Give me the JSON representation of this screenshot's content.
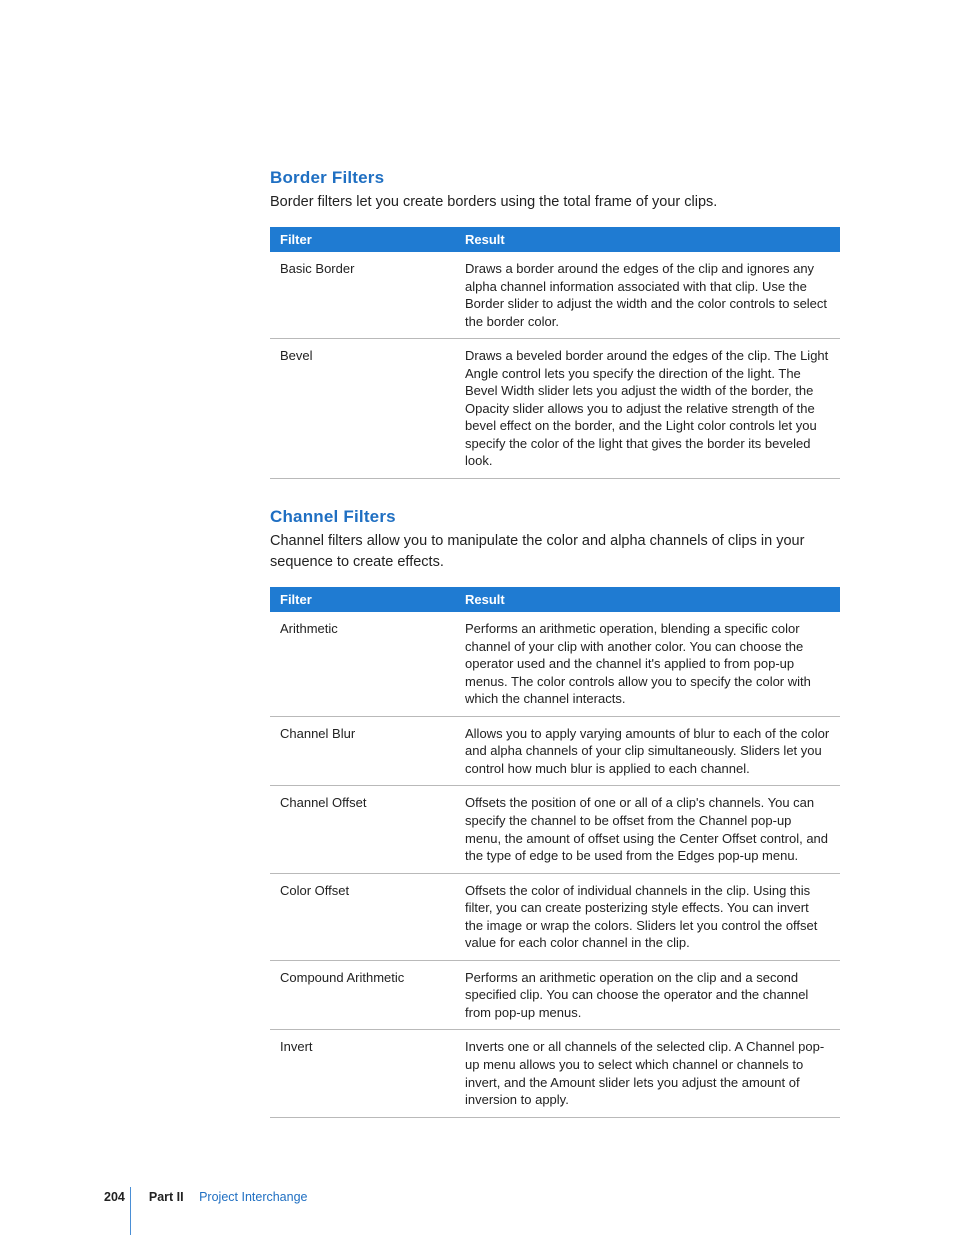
{
  "colors": {
    "heading": "#1f6fc2",
    "table_header_bg": "#1f7bd2",
    "table_header_text": "#ffffff",
    "row_border": "#b9b9b9",
    "body_text": "#222222",
    "footer_accent": "#1f6fc2",
    "vline": "#4a8fd6"
  },
  "sections": [
    {
      "heading": "Border Filters",
      "intro": "Border filters let you create borders using the total frame of your clips.",
      "columns": [
        "Filter",
        "Result"
      ],
      "rows": [
        {
          "filter": "Basic Border",
          "result": "Draws a border around the edges of the clip and ignores any alpha channel information associated with that clip. Use the Border slider to adjust the width and the color controls to select the border color."
        },
        {
          "filter": "Bevel",
          "result": "Draws a beveled border around the edges of the clip. The Light Angle control lets you specify the direction of the light. The Bevel Width slider lets you adjust the width of the border, the Opacity slider allows you to adjust the relative strength of the bevel effect on the border, and the Light color controls let you specify the color of the light that gives the border its beveled look."
        }
      ]
    },
    {
      "heading": "Channel Filters",
      "intro": "Channel filters allow you to manipulate the color and alpha channels of clips in your sequence to create effects.",
      "columns": [
        "Filter",
        "Result"
      ],
      "rows": [
        {
          "filter": "Arithmetic",
          "result": "Performs an arithmetic operation, blending a specific color channel of your clip with another color. You can choose the operator used and the channel it's applied to from pop-up menus. The color controls allow you to specify the color with which the channel interacts."
        },
        {
          "filter": "Channel Blur",
          "result": "Allows you to apply varying amounts of blur to each of the color and alpha channels of your clip simultaneously. Sliders let you control how much blur is applied to each channel."
        },
        {
          "filter": "Channel Offset",
          "result": "Offsets the position of one or all of a clip's channels. You can specify the channel to be offset from the Channel pop-up menu, the amount of offset using the Center Offset control, and the type of edge to be used from the Edges pop-up menu."
        },
        {
          "filter": "Color Offset",
          "result": "Offsets the color of individual channels in the clip. Using this filter, you can create posterizing style effects. You can invert the image or wrap the colors. Sliders let you control the offset value for each color channel in the clip."
        },
        {
          "filter": "Compound Arithmetic",
          "result": "Performs an arithmetic operation on the clip and a second specified clip. You can choose the operator and the channel from pop-up menus."
        },
        {
          "filter": "Invert",
          "result": "Inverts one or all channels of the selected clip. A Channel pop-up menu allows you to select which channel or channels to invert, and the Amount slider lets you adjust the amount of inversion to apply."
        }
      ]
    }
  ],
  "footer": {
    "page_number": "204",
    "part_label": "Part II",
    "part_title": "Project Interchange"
  }
}
